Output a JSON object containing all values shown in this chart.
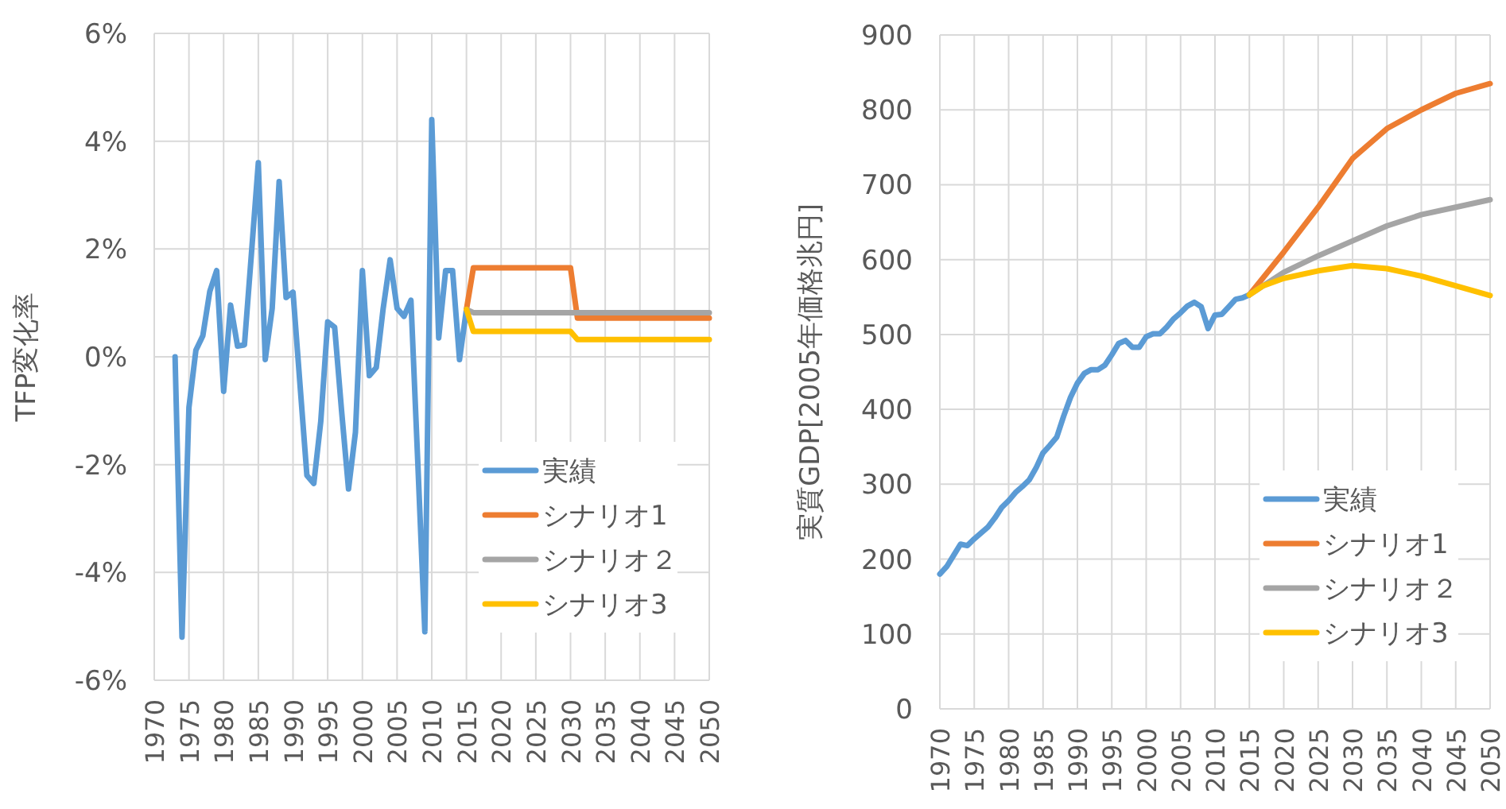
{
  "chart_data": [
    {
      "type": "line",
      "ylabel": "TFP変化率",
      "xlim": [
        1970,
        2050
      ],
      "xticks": [
        1970,
        1975,
        1980,
        1985,
        1990,
        1995,
        2000,
        2005,
        2010,
        2015,
        2020,
        2025,
        2030,
        2035,
        2040,
        2045,
        2050
      ],
      "ylim": [
        -6,
        6
      ],
      "yticks": [
        {
          "value": -6,
          "label": "-6%"
        },
        {
          "value": -4,
          "label": "-4%"
        },
        {
          "value": -2,
          "label": "-2%"
        },
        {
          "value": 0,
          "label": "0%"
        },
        {
          "value": 2,
          "label": "2%"
        },
        {
          "value": 4,
          "label": "4%"
        },
        {
          "value": 6,
          "label": "6%"
        }
      ],
      "grid": true,
      "legend": "bottom right",
      "series": [
        {
          "name": "実績",
          "color": "#5b9bd5",
          "x": [
            1973,
            1974,
            1975,
            1976,
            1977,
            1978,
            1979,
            1980,
            1981,
            1982,
            1983,
            1984,
            1985,
            1986,
            1987,
            1988,
            1989,
            1990,
            1991,
            1992,
            1993,
            1994,
            1995,
            1996,
            1997,
            1998,
            1999,
            2000,
            2001,
            2002,
            2003,
            2004,
            2005,
            2006,
            2007,
            2008,
            2009,
            2010,
            2011,
            2012,
            2013,
            2014,
            2015
          ],
          "values": [
            0.0,
            -5.2,
            -0.94,
            0.12,
            0.39,
            1.21,
            1.6,
            -0.64,
            0.96,
            0.2,
            0.22,
            1.9,
            3.6,
            -0.05,
            0.9,
            3.25,
            1.1,
            1.2,
            -0.5,
            -2.2,
            -2.35,
            -1.2,
            0.65,
            0.55,
            -1.0,
            -2.45,
            -1.4,
            1.6,
            -0.35,
            -0.2,
            0.9,
            1.8,
            0.9,
            0.75,
            1.05,
            -2.0,
            -5.1,
            4.4,
            0.35,
            1.6,
            1.6,
            -0.05,
            0.88
          ]
        },
        {
          "name": "シナリオ1",
          "color": "#ed7d31",
          "x": [
            2015,
            2016,
            2030,
            2031,
            2050
          ],
          "values": [
            0.88,
            1.65,
            1.65,
            0.72,
            0.72
          ]
        },
        {
          "name": "シナリオ２",
          "color": "#a5a5a5",
          "x": [
            2015,
            2016,
            2050
          ],
          "values": [
            0.88,
            0.82,
            0.82
          ]
        },
        {
          "name": "シナリオ3",
          "color": "#ffc000",
          "x": [
            2015,
            2016,
            2030,
            2031,
            2050
          ],
          "values": [
            0.88,
            0.47,
            0.47,
            0.32,
            0.32
          ]
        }
      ]
    },
    {
      "type": "line",
      "ylabel": "実質GDP[2005年価格兆円]",
      "xlim": [
        1970,
        2050
      ],
      "xticks": [
        1970,
        1975,
        1980,
        1985,
        1990,
        1995,
        2000,
        2005,
        2010,
        2015,
        2020,
        2025,
        2030,
        2035,
        2040,
        2045,
        2050
      ],
      "ylim": [
        0,
        900
      ],
      "yticks": [
        0,
        100,
        200,
        300,
        400,
        500,
        600,
        700,
        800,
        900
      ],
      "grid": true,
      "legend": "bottom right",
      "series": [
        {
          "name": "実績",
          "color": "#5b9bd5",
          "x": [
            1970,
            1971,
            1972,
            1973,
            1974,
            1975,
            1976,
            1977,
            1978,
            1979,
            1980,
            1981,
            1982,
            1983,
            1984,
            1985,
            1986,
            1987,
            1988,
            1989,
            1990,
            1991,
            1992,
            1993,
            1994,
            1995,
            1996,
            1997,
            1998,
            1999,
            2000,
            2001,
            2002,
            2003,
            2004,
            2005,
            2006,
            2007,
            2008,
            2009,
            2010,
            2011,
            2012,
            2013,
            2014,
            2015
          ],
          "values": [
            180,
            190,
            205,
            220,
            218,
            227,
            235,
            243,
            255,
            269,
            278,
            289,
            297,
            306,
            322,
            342,
            352,
            363,
            391,
            416,
            435,
            448,
            453,
            453,
            459,
            473,
            488,
            492,
            483,
            483,
            497,
            501,
            501,
            510,
            521,
            529,
            538,
            543,
            537,
            508,
            526,
            527,
            537,
            547,
            549,
            553
          ]
        },
        {
          "name": "シナリオ1",
          "color": "#ed7d31",
          "x": [
            2015,
            2020,
            2025,
            2030,
            2035,
            2040,
            2045,
            2050
          ],
          "values": [
            553,
            610,
            670,
            735,
            775,
            800,
            822,
            835
          ]
        },
        {
          "name": "シナリオ２",
          "color": "#a5a5a5",
          "x": [
            2015,
            2020,
            2025,
            2030,
            2035,
            2040,
            2045,
            2050
          ],
          "values": [
            553,
            583,
            605,
            625,
            645,
            660,
            670,
            680
          ]
        },
        {
          "name": "シナリオ3",
          "color": "#ffc000",
          "x": [
            2015,
            2017,
            2020,
            2025,
            2030,
            2035,
            2040,
            2045,
            2050
          ],
          "values": [
            553,
            565,
            575,
            585,
            592,
            588,
            578,
            565,
            552
          ]
        }
      ]
    }
  ]
}
